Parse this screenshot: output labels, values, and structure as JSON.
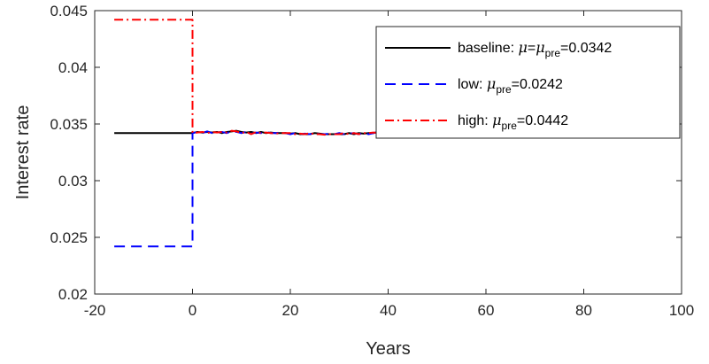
{
  "chart_data": {
    "type": "line",
    "title": "",
    "xlabel": "Years",
    "ylabel": "Interest rate",
    "xlim": [
      -20,
      100
    ],
    "ylim": [
      0.02,
      0.045
    ],
    "xticks": [
      -20,
      0,
      20,
      40,
      60,
      80,
      100
    ],
    "xtick_labels": [
      "-20",
      "0",
      "20",
      "40",
      "60",
      "80",
      "100"
    ],
    "yticks": [
      0.02,
      0.025,
      0.03,
      0.035,
      0.04,
      0.045
    ],
    "ytick_labels": [
      "0.02",
      "0.025",
      "0.03",
      "0.035",
      "0.04",
      "0.045"
    ],
    "grid": false,
    "legend_position": "top-right",
    "series": [
      {
        "name": "baseline",
        "legend": {
          "prefix": "baseline: ",
          "mu": "μ",
          "eq": "=",
          "mu2": "μ",
          "sub": "pre",
          "value": "=0.0342"
        },
        "color": "#000000",
        "dash": "solid",
        "x": [
          -16,
          0,
          1,
          2,
          3,
          4,
          5,
          6,
          7,
          8,
          9,
          10,
          11,
          12,
          13,
          14,
          15,
          16,
          17,
          18,
          19,
          20,
          21,
          22,
          23,
          24,
          25,
          26,
          27,
          28,
          29,
          30,
          31,
          32,
          33,
          34,
          35,
          36,
          37,
          38,
          39,
          40
        ],
        "y": [
          0.0342,
          0.0342,
          0.0343,
          0.03425,
          0.0343,
          0.03425,
          0.0343,
          0.0342,
          0.0343,
          0.03435,
          0.0344,
          0.0343,
          0.03425,
          0.0343,
          0.0342,
          0.0343,
          0.0342,
          0.03425,
          0.0342,
          0.0342,
          0.0342,
          0.03415,
          0.0342,
          0.0341,
          0.0341,
          0.0341,
          0.0342,
          0.03415,
          0.0341,
          0.0341,
          0.0341,
          0.0341,
          0.0341,
          0.0342,
          0.0341,
          0.0342,
          0.03415,
          0.0342,
          0.0342,
          0.0343,
          0.0342,
          0.0342
        ]
      },
      {
        "name": "low",
        "legend": {
          "prefix": "low: ",
          "mu": "μ",
          "sub": "pre",
          "value": "=0.0242"
        },
        "color": "#0000ff",
        "dash": "dashed",
        "x": [
          -16,
          0,
          0,
          1,
          2,
          3,
          4,
          5,
          6,
          7,
          8,
          9,
          10,
          11,
          12,
          13,
          14,
          15,
          16,
          17,
          18,
          19,
          20,
          21,
          22,
          23,
          24,
          25,
          26,
          27,
          28,
          29,
          30,
          31,
          32,
          33,
          34,
          35,
          36,
          37,
          38,
          39,
          40
        ],
        "y": [
          0.0242,
          0.0242,
          0.0342,
          0.0343,
          0.0342,
          0.03435,
          0.0342,
          0.03425,
          0.0343,
          0.0342,
          0.03435,
          0.0343,
          0.0342,
          0.0343,
          0.03415,
          0.03425,
          0.0342,
          0.0343,
          0.0342,
          0.0342,
          0.03425,
          0.0342,
          0.0341,
          0.0342,
          0.0341,
          0.03415,
          0.0341,
          0.0342,
          0.0341,
          0.0341,
          0.03415,
          0.0341,
          0.0342,
          0.0341,
          0.03415,
          0.0342,
          0.0341,
          0.0342,
          0.0341,
          0.0342,
          0.0343,
          0.0342,
          0.0342
        ]
      },
      {
        "name": "high",
        "legend": {
          "prefix": "high: ",
          "mu": "μ",
          "sub": "pre",
          "value": "=0.0442"
        },
        "color": "#ff0000",
        "dash": "dashdot",
        "x": [
          -16,
          0,
          0,
          1,
          2,
          3,
          4,
          5,
          6,
          7,
          8,
          9,
          10,
          11,
          12,
          13,
          14,
          15,
          16,
          17,
          18,
          19,
          20,
          21,
          22,
          23,
          24,
          25,
          26,
          27,
          28,
          29,
          30,
          31,
          32,
          33,
          34,
          35,
          36,
          37,
          38,
          39,
          40
        ],
        "y": [
          0.0442,
          0.0442,
          0.0342,
          0.03425,
          0.0343,
          0.0342,
          0.0343,
          0.03425,
          0.0343,
          0.03425,
          0.0344,
          0.03435,
          0.0342,
          0.0343,
          0.0341,
          0.0343,
          0.0342,
          0.03425,
          0.0342,
          0.03415,
          0.0342,
          0.0342,
          0.0342,
          0.0341,
          0.03415,
          0.0341,
          0.0342,
          0.0341,
          0.0341,
          0.03405,
          0.0341,
          0.0341,
          0.0341,
          0.0342,
          0.0341,
          0.0342,
          0.0341,
          0.0342,
          0.0342,
          0.03425,
          0.0342,
          0.0342,
          0.0342
        ]
      }
    ]
  }
}
